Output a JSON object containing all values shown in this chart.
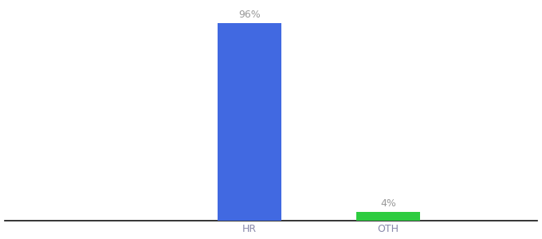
{
  "categories": [
    "HR",
    "OTH"
  ],
  "values": [
    96,
    4
  ],
  "bar_colors": [
    "#4169e1",
    "#2ecc40"
  ],
  "label_texts": [
    "96%",
    "4%"
  ],
  "background_color": "#ffffff",
  "ylim": [
    0,
    105
  ],
  "bar_width": 0.12,
  "figsize": [
    6.8,
    3.0
  ],
  "dpi": 100,
  "label_fontsize": 9,
  "tick_fontsize": 9,
  "tick_color": "#8888aa",
  "x_positions": [
    0.46,
    0.72
  ],
  "xlim": [
    0.0,
    1.0
  ]
}
